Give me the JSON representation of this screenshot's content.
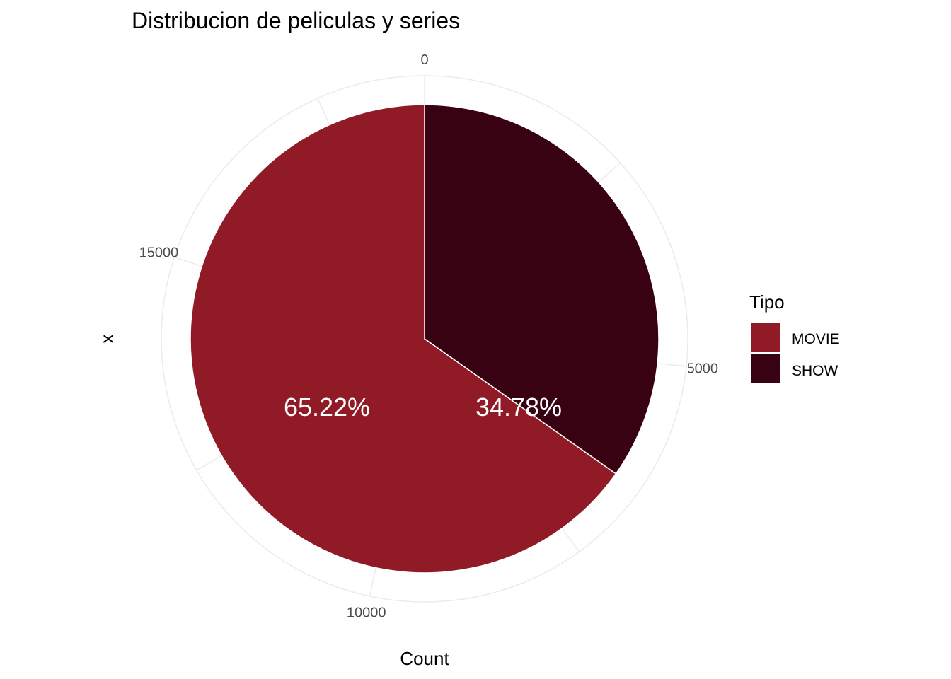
{
  "chart_data": {
    "type": "pie",
    "title": "Distribucion de peliculas y series",
    "xlabel": "Count",
    "ylabel": "x",
    "categories": [
      "SHOW",
      "MOVIE"
    ],
    "values": [
      6521,
      12226
    ],
    "percent_labels": [
      "34.78%",
      "65.22%"
    ],
    "colors": [
      "#380212",
      "#901B26"
    ],
    "radial_ticks": [
      0,
      5000,
      10000,
      15000
    ],
    "total": 18747,
    "grid": true,
    "legend": {
      "title": "Tipo",
      "position": "right",
      "entries": [
        {
          "label": "MOVIE",
          "color": "#901B26"
        },
        {
          "label": "SHOW",
          "color": "#380212"
        }
      ]
    }
  }
}
